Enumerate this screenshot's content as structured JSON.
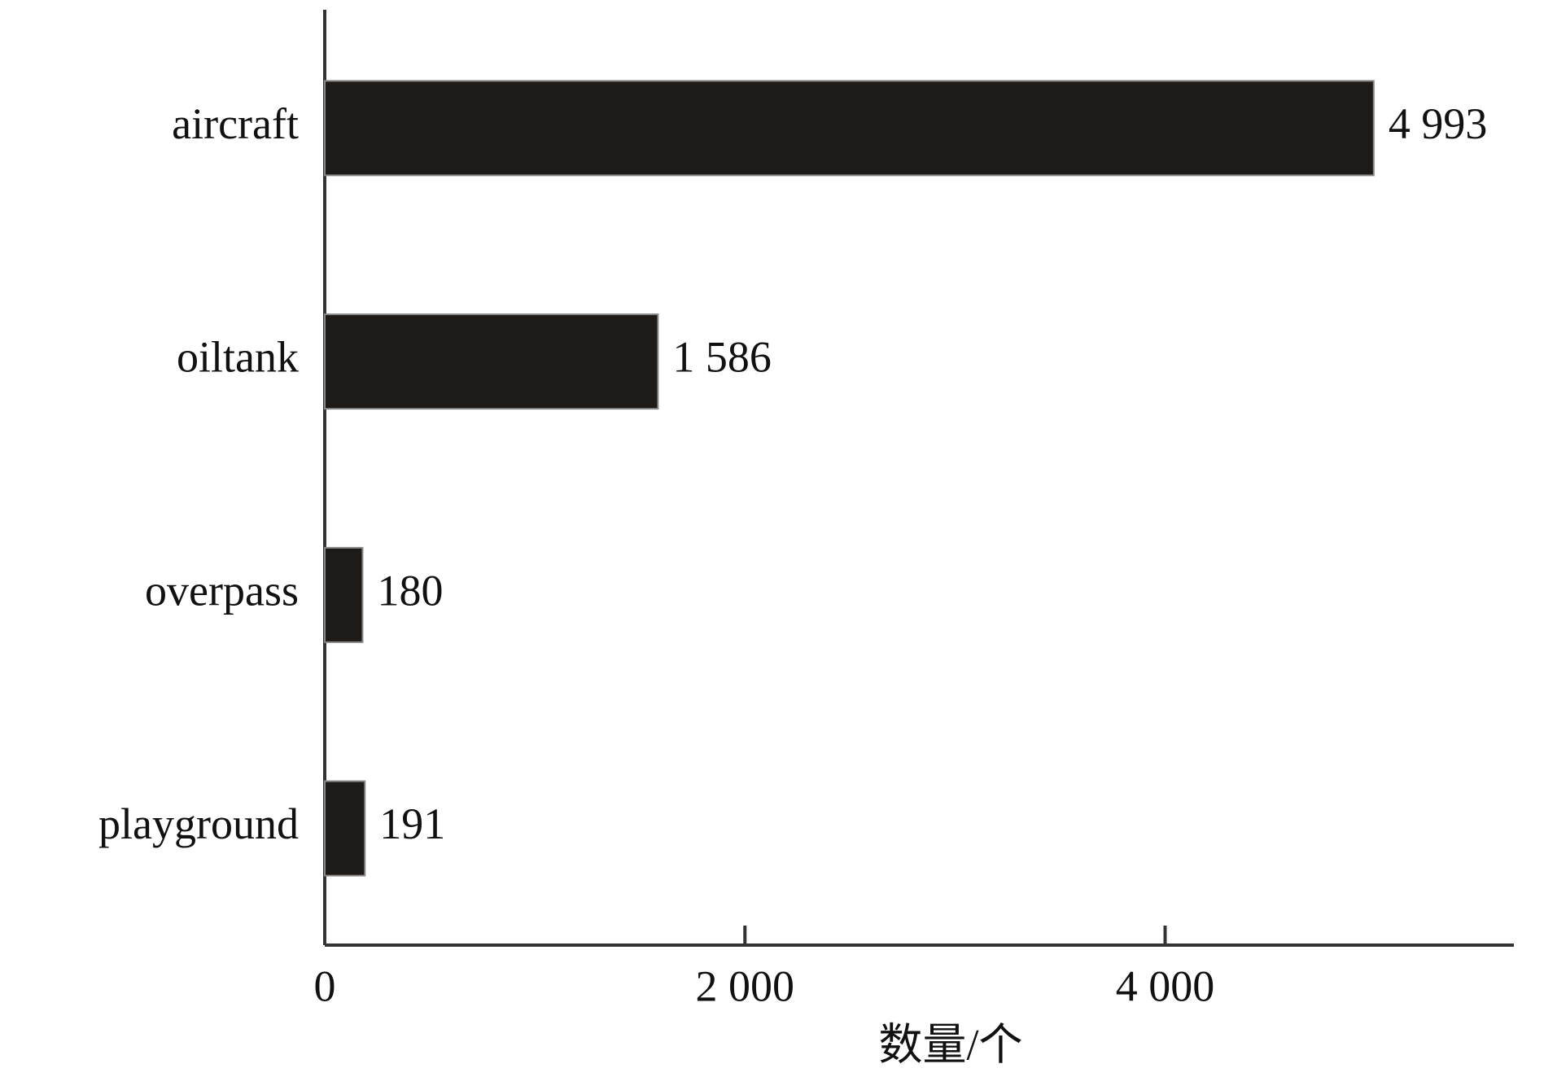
{
  "chart_data": {
    "type": "bar",
    "orientation": "horizontal",
    "categories": [
      "aircraft",
      "oiltank",
      "overpass",
      "playground"
    ],
    "values": [
      4993,
      1586,
      180,
      191
    ],
    "value_labels": [
      "4 993",
      "1 586",
      "180",
      "191"
    ],
    "color": "#1e1a17",
    "xlim": [
      0,
      5660
    ],
    "xticks": [
      0,
      {
        "value": 2000,
        "label": "2 000"
      },
      {
        "value": 4000,
        "label": "4 000"
      }
    ],
    "xlabel": "数量/个"
  }
}
